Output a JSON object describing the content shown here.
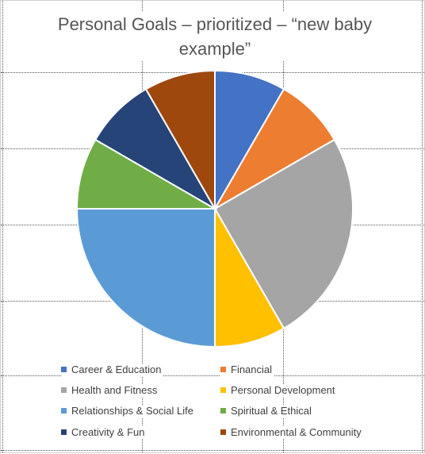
{
  "chart_data": {
    "type": "pie",
    "title": "Personal Goals – prioritized – “new baby example”",
    "title_line1": "Personal Goals – prioritized – “new baby",
    "title_line2": "example”",
    "categories": [
      "Career & Education",
      "Financial",
      "Health and Fitness",
      "Personal Development",
      "Relationships & Social Life",
      "Spiritual & Ethical",
      "Creativity & Fun",
      "Environmental & Community"
    ],
    "values": [
      1,
      1,
      3,
      1,
      3,
      1,
      1,
      1
    ],
    "colors": [
      "#4472C4",
      "#ED7D31",
      "#A5A5A5",
      "#FFC000",
      "#5B9BD5",
      "#70AD47",
      "#264478",
      "#9E480E"
    ],
    "legend_placement": "bottom",
    "grid": true
  }
}
